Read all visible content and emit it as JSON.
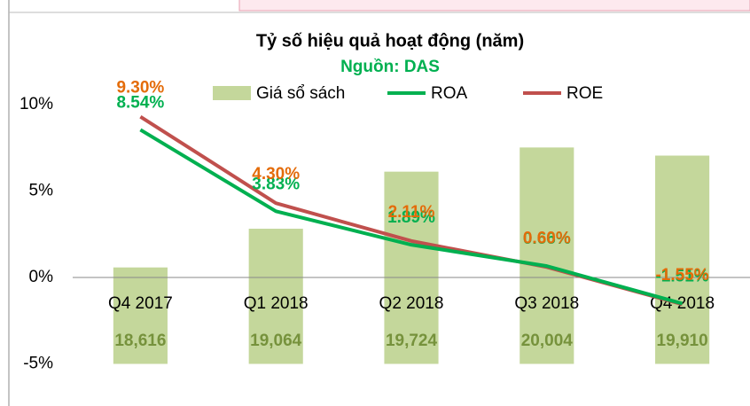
{
  "chart_data": {
    "type": "bar_line",
    "title": "Tỷ số hiệu quả hoạt động (năm)",
    "subtitle": "Nguồn: DAS",
    "categories": [
      "Q4 2017",
      "Q1 2018",
      "Q2 2018",
      "Q3 2018",
      "Q4 2018"
    ],
    "series": [
      {
        "name": "Giá sổ sách",
        "type": "bar",
        "axis": "y2",
        "color": "#c4d79b",
        "label_color": "#76923c",
        "values": [
          18616,
          19064,
          19724,
          20004,
          19910
        ],
        "value_labels": [
          "18,616",
          "19,064",
          "19,724",
          "20,004",
          "19,910"
        ]
      },
      {
        "name": "ROA",
        "type": "line",
        "color": "#00b050",
        "label_color": "#00b050",
        "values": [
          8.54,
          3.83,
          1.89,
          0.66,
          -1.51
        ],
        "value_labels": [
          "8.54%",
          "3.83%",
          "1.89%",
          "0.66%",
          "-1.51%"
        ]
      },
      {
        "name": "ROE",
        "type": "line",
        "color": "#c0504d",
        "label_color": "#e46c0a",
        "values": [
          9.3,
          4.3,
          2.11,
          0.6,
          -1.55
        ],
        "value_labels": [
          "9.30%",
          "4.30%",
          "2.11%",
          "0.60%",
          "-1.55%"
        ]
      }
    ],
    "ylim": [
      -5,
      10
    ],
    "yticks": [
      {
        "value": -5,
        "label": "-5%"
      },
      {
        "value": 0,
        "label": "0%"
      },
      {
        "value": 5,
        "label": "5%"
      },
      {
        "value": 10,
        "label": "10%"
      }
    ],
    "y2lim": [
      17500,
      20500
    ],
    "grid": false,
    "legend": "top"
  }
}
